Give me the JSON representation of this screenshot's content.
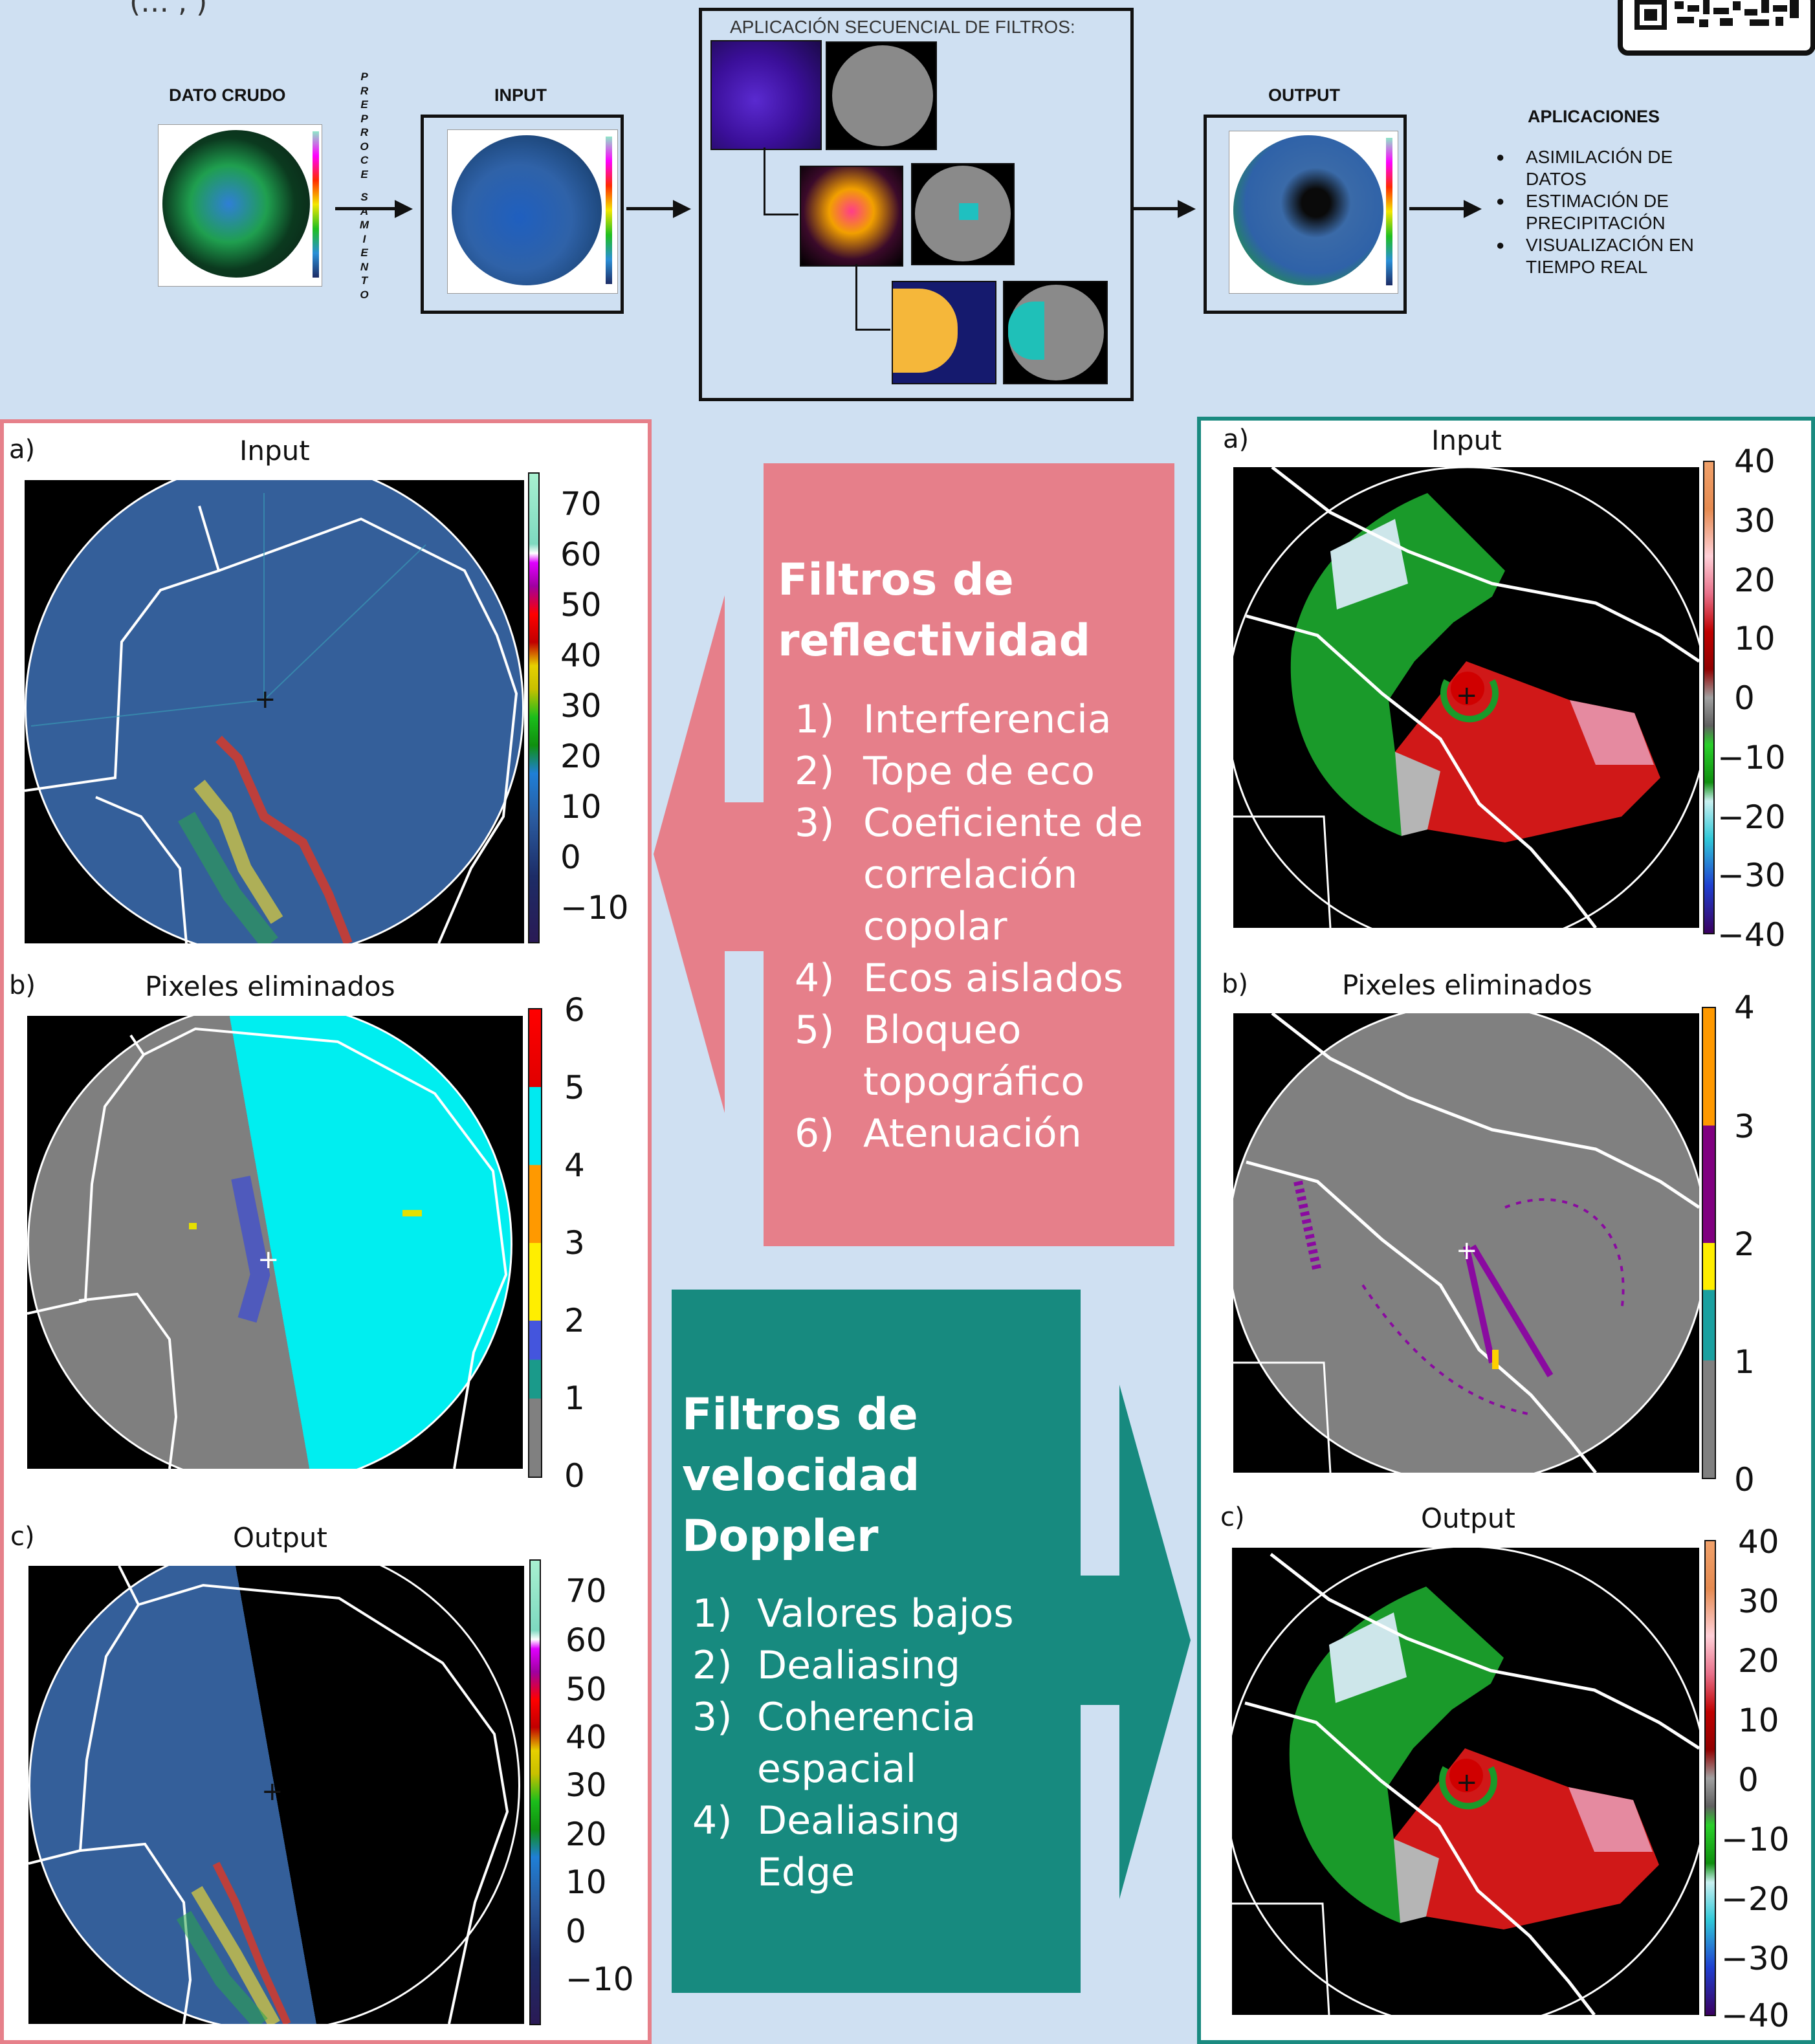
{
  "top_left_fragment": "(…         ,      )",
  "pipeline": {
    "raw_label": "DATO CRUDO",
    "preprocess_letters": [
      "P",
      "R",
      "E",
      "P",
      "R",
      "O",
      "C",
      "E",
      "",
      "S",
      "A",
      "M",
      "I",
      "E",
      "N",
      "T",
      "O"
    ],
    "input_label": "INPUT",
    "filters_title": "APLICACIÓN SECUENCIAL DE FILTROS:",
    "output_label": "OUTPUT",
    "applications_title": "APLICACIONES",
    "applications": [
      [
        "ASIMILACIÓN DE",
        "DATOS"
      ],
      [
        "ESTIMACIÓN DE",
        "PRECIPITACIÓN"
      ],
      [
        "VISUALIZACIÓN EN",
        "TIEMPO REAL"
      ]
    ]
  },
  "left_panel": {
    "plots": [
      {
        "letter": "a)",
        "title": "Input",
        "ticks": [
          "70",
          "60",
          "50",
          "40",
          "30",
          "20",
          "10",
          "0",
          "−10"
        ]
      },
      {
        "letter": "b)",
        "title": "Pixeles eliminados",
        "ticks": [
          "6",
          "5",
          "4",
          "3",
          "2",
          "1",
          "0"
        ]
      },
      {
        "letter": "c)",
        "title": "Output",
        "ticks": [
          "70",
          "60",
          "50",
          "40",
          "30",
          "20",
          "10",
          "0",
          "−10"
        ]
      }
    ]
  },
  "right_panel": {
    "plots": [
      {
        "letter": "a)",
        "title": "Input",
        "ticks": [
          "40",
          "30",
          "20",
          "10",
          "0",
          "−10",
          "−20",
          "−30",
          "−40"
        ]
      },
      {
        "letter": "b)",
        "title": "Pixeles eliminados",
        "ticks": [
          "4",
          "3",
          "2",
          "1",
          "0"
        ]
      },
      {
        "letter": "c)",
        "title": "Output",
        "ticks": [
          "40",
          "30",
          "20",
          "10",
          "0",
          "−10",
          "−20",
          "−30",
          "−40"
        ]
      }
    ]
  },
  "reflectivity_callout": {
    "title_line1": "Filtros de",
    "title_line2": "reflectividad",
    "items": [
      {
        "num": "1)",
        "lines": [
          "Interferencia"
        ]
      },
      {
        "num": "2)",
        "lines": [
          "Tope de eco"
        ]
      },
      {
        "num": "3)",
        "lines": [
          "Coeficiente de",
          "correlación",
          "copolar"
        ]
      },
      {
        "num": "4)",
        "lines": [
          "Ecos aislados"
        ]
      },
      {
        "num": "5)",
        "lines": [
          "Bloqueo",
          "topográfico"
        ]
      },
      {
        "num": "6)",
        "lines": [
          "Atenuación"
        ]
      }
    ]
  },
  "doppler_callout": {
    "title_line1": "Filtros de",
    "title_line2": "velocidad",
    "title_line3": "Doppler",
    "items": [
      {
        "num": "1)",
        "lines": [
          "Valores bajos"
        ]
      },
      {
        "num": "2)",
        "lines": [
          "Dealiasing"
        ]
      },
      {
        "num": "3)",
        "lines": [
          "Coherencia",
          "espacial"
        ]
      },
      {
        "num": "4)",
        "lines": [
          "Dealiasing",
          "Edge"
        ]
      }
    ]
  },
  "colors": {
    "background": "#cfe0f2",
    "reflectivity_accent": "#e67f8a",
    "doppler_accent": "#178a7f",
    "radar_blue": "#345f9a",
    "removed_gray": "#808080",
    "removed_cyan": "#00f0f0"
  },
  "icons": {
    "qr": "qr-code-icon"
  }
}
